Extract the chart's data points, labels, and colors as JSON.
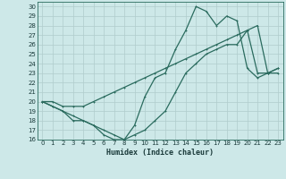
{
  "xlabel": "Humidex (Indice chaleur)",
  "xlim": [
    -0.5,
    23.5
  ],
  "ylim": [
    16,
    30.5
  ],
  "yticks": [
    16,
    17,
    18,
    19,
    20,
    21,
    22,
    23,
    24,
    25,
    26,
    27,
    28,
    29,
    30
  ],
  "xticks": [
    0,
    1,
    2,
    3,
    4,
    5,
    6,
    7,
    8,
    9,
    10,
    11,
    12,
    13,
    14,
    15,
    16,
    17,
    18,
    19,
    20,
    21,
    22,
    23
  ],
  "bg_color": "#cde8e8",
  "grid_color": "#b8d8d8",
  "line_color": "#2a6b5e",
  "line1_x": [
    0,
    1,
    2,
    3,
    4,
    5,
    6,
    7,
    8,
    9,
    10,
    11,
    12,
    13,
    14,
    15,
    16,
    17,
    18,
    19,
    20,
    21,
    22,
    23
  ],
  "line1_y": [
    20,
    19.5,
    19,
    18.5,
    18,
    17.5,
    16.5,
    16,
    16,
    17.5,
    20.5,
    22.5,
    23,
    25.5,
    27.5,
    30,
    29.5,
    28,
    29,
    28.5,
    23.5,
    22.5,
    23,
    23
  ],
  "line2_x": [
    0,
    1,
    2,
    3,
    4,
    5,
    6,
    7,
    8,
    9,
    10,
    11,
    12,
    13,
    14,
    15,
    16,
    17,
    18,
    19,
    20,
    21,
    22,
    23
  ],
  "line2_y": [
    20,
    20,
    19.5,
    19.5,
    19.5,
    20,
    20.5,
    21,
    21.5,
    22,
    22.5,
    23,
    23.5,
    24,
    24.5,
    25,
    25.5,
    26,
    26.5,
    27,
    27.5,
    28,
    23,
    23.5
  ],
  "line3_x": [
    0,
    1,
    2,
    3,
    4,
    5,
    6,
    7,
    8,
    9,
    10,
    11,
    12,
    13,
    14,
    15,
    16,
    17,
    18,
    19,
    20,
    21,
    22,
    23
  ],
  "line3_y": [
    20,
    19.5,
    19,
    18,
    18,
    17.5,
    17,
    16.5,
    16,
    16.5,
    17,
    18,
    19,
    21,
    23,
    24,
    25,
    25.5,
    26,
    26,
    27.5,
    23,
    23,
    23.5
  ]
}
